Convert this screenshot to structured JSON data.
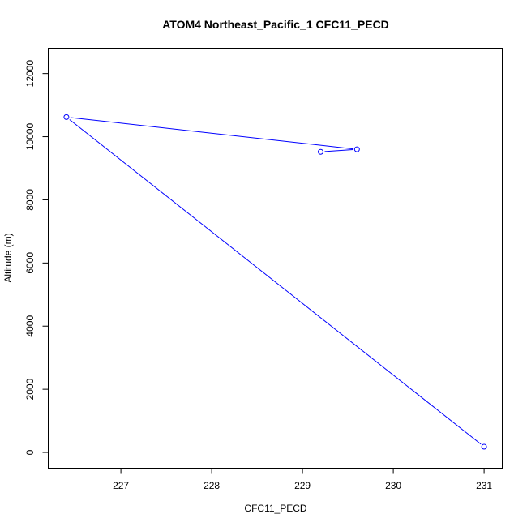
{
  "chart_data": {
    "type": "line",
    "title": "ATOM4 Northeast_Pacific_1 CFC11_PECD",
    "xlabel": "CFC11_PECD",
    "ylabel": "Altitude (m)",
    "xlim": [
      226.2,
      231.2
    ],
    "ylim": [
      -500,
      12800
    ],
    "x_ticks": [
      227,
      228,
      229,
      230,
      231
    ],
    "y_ticks": [
      0,
      2000,
      4000,
      6000,
      8000,
      10000,
      12000
    ],
    "grid": false,
    "legend": "none",
    "series": [
      {
        "color": "#0000ff",
        "marker": "open-circle",
        "points": [
          {
            "x": 229.2,
            "y": 9520
          },
          {
            "x": 229.6,
            "y": 9600
          },
          {
            "x": 226.4,
            "y": 10620
          },
          {
            "x": 231.0,
            "y": 180
          }
        ]
      }
    ]
  }
}
